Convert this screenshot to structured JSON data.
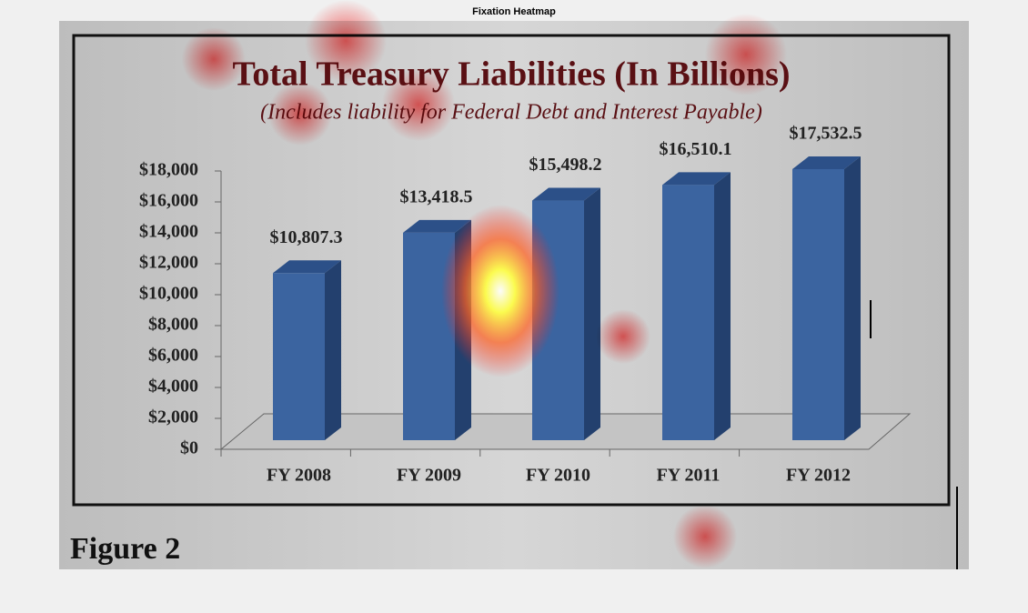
{
  "header": {
    "title": "Fixation Heatmap"
  },
  "caption": "Figure 2",
  "chart_data": {
    "type": "bar",
    "title": "Total Treasury Liabilities (In Billions)",
    "subtitle": "(Includes liability for Federal Debt and Interest Payable)",
    "categories": [
      "FY 2008",
      "FY 2009",
      "FY 2010",
      "FY 2011",
      "FY 2012"
    ],
    "values": [
      10807.3,
      13418.5,
      15498.2,
      16510.1,
      17532.5
    ],
    "value_labels": [
      "$10,807.3",
      "$13,418.5",
      "$15,498.2",
      "$16,510.1",
      "$17,532.5"
    ],
    "color": "#3b64a0",
    "ylim": [
      0,
      18000
    ],
    "yticks": [
      {
        "value": 0,
        "label": "$0"
      },
      {
        "value": 2000,
        "label": "$2,000"
      },
      {
        "value": 4000,
        "label": "$4,000"
      },
      {
        "value": 6000,
        "label": "$6,000"
      },
      {
        "value": 8000,
        "label": "$8,000"
      },
      {
        "value": 10000,
        "label": "$10,000"
      },
      {
        "value": 12000,
        "label": "$12,000"
      },
      {
        "value": 14000,
        "label": "$14,000"
      },
      {
        "value": 16000,
        "label": "$16,000"
      },
      {
        "value": 18000,
        "label": "$18,000"
      }
    ]
  }
}
